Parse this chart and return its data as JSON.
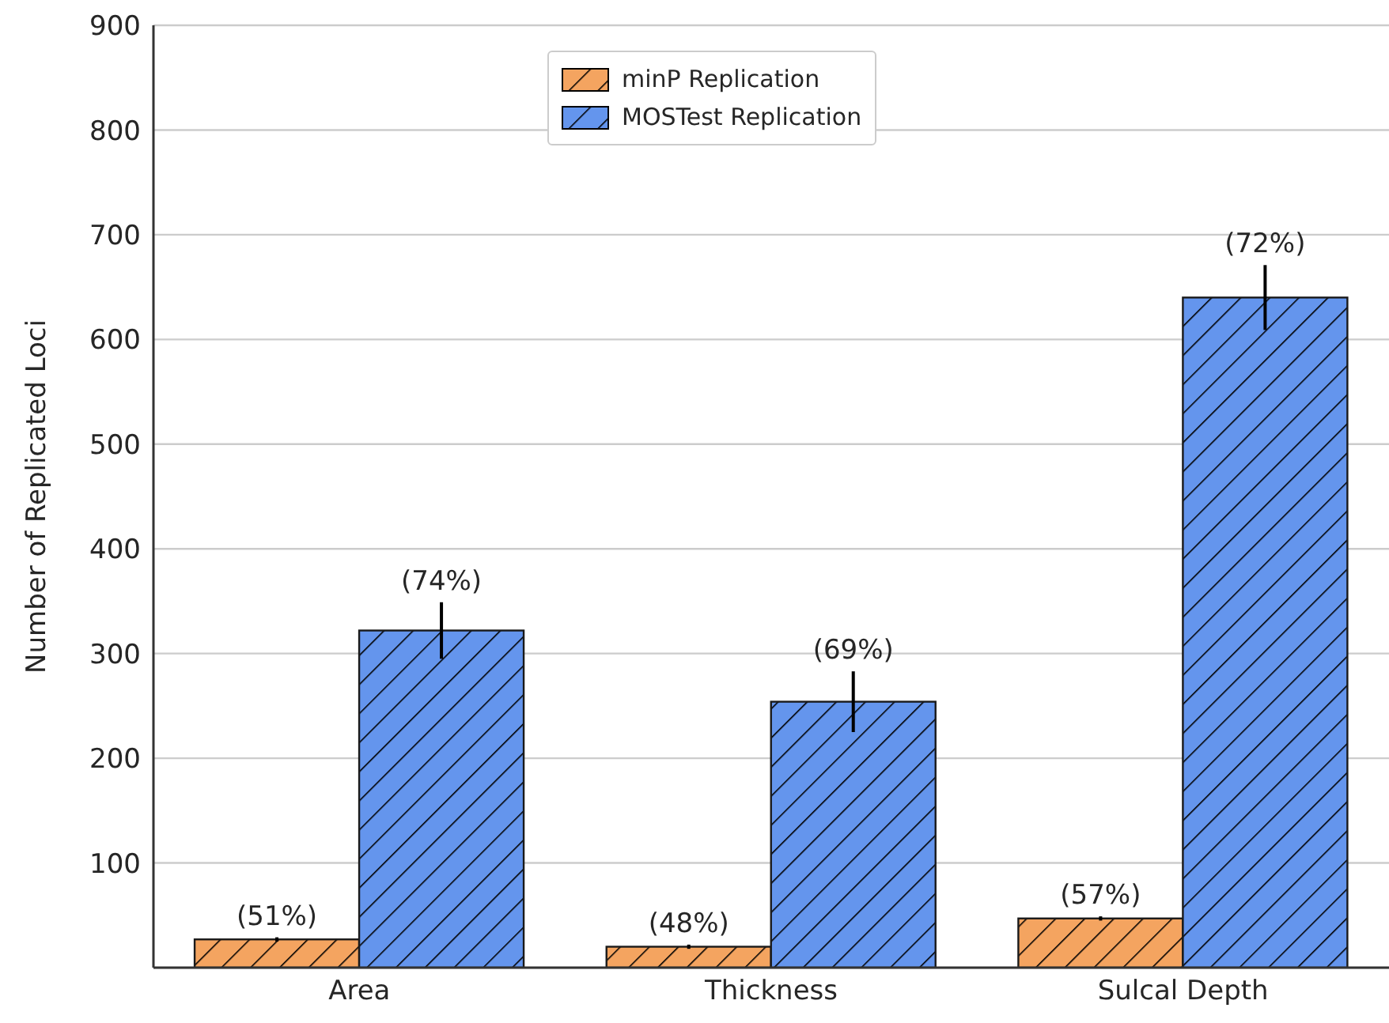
{
  "chart_data": {
    "type": "bar",
    "ylabel": "Number of Replicated Loci",
    "categories": [
      "Area",
      "Thickness",
      "Sulcal Depth"
    ],
    "series": [
      {
        "name": "minP Replication",
        "color": "#f4a460",
        "values": [
          27,
          20,
          47
        ],
        "errors": [
          2,
          2,
          2
        ]
      },
      {
        "name": "MOSTest Replication",
        "color": "#6495ed",
        "values": [
          322,
          254,
          640
        ],
        "errors": [
          27,
          29,
          31
        ]
      }
    ],
    "annotations": [
      "(51%)",
      "(48%)",
      "(57%)",
      "(74%)",
      "(69%)",
      "(72%)"
    ],
    "ylim": [
      0,
      900
    ],
    "yticks": [
      100,
      200,
      300,
      400,
      500,
      600,
      700,
      800,
      900
    ],
    "grid": "y",
    "legend": "top"
  }
}
